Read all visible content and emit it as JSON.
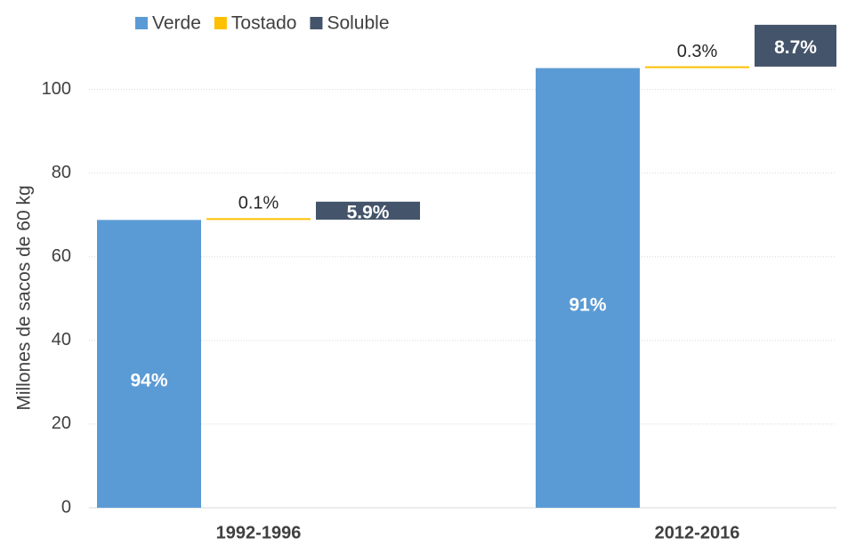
{
  "chart_data": {
    "type": "floating_stack",
    "y_axis_label": "Millones de sacos de 60 kg",
    "categories": [
      "1992-1996",
      "2012-2016"
    ],
    "series": [
      {
        "name": "Verde",
        "color": "#5b9bd5",
        "values": [
          68.8,
          105.1
        ],
        "share_labels": [
          "94%",
          "91%"
        ]
      },
      {
        "name": "Tostado",
        "color": "#ffc000",
        "values": [
          0.07,
          0.35
        ],
        "share_labels": [
          "0.1%",
          "0.3%"
        ]
      },
      {
        "name": "Soluble",
        "color": "#44546a",
        "values": [
          4.3,
          10.0
        ],
        "share_labels": [
          "5.9%",
          "8.7%"
        ]
      }
    ],
    "ylim": [
      0,
      115
    ],
    "yticks": [
      0,
      20,
      40,
      60,
      80,
      100
    ],
    "grid": true,
    "legend": "top"
  }
}
